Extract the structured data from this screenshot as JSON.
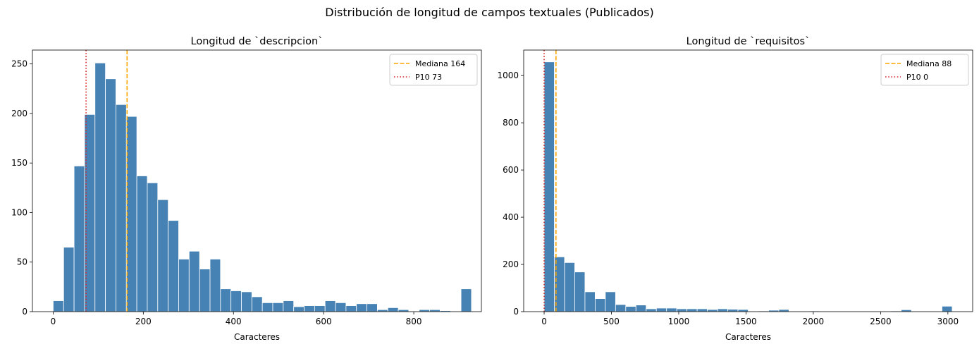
{
  "figure": {
    "suptitle": "Distribución de longitud de campos textuales (Publicados)"
  },
  "colors": {
    "bar": "#4682b4",
    "median": "#ffa500",
    "p10": "#d62728"
  },
  "chart_data": [
    {
      "type": "bar",
      "title": "Longitud de `descripcion`",
      "xlabel": "Caracteres",
      "ylabel": "",
      "xlim": [
        -46,
        950
      ],
      "ylim": [
        0,
        264
      ],
      "xticks": [
        0,
        200,
        400,
        600,
        800
      ],
      "yticks": [
        0,
        50,
        100,
        150,
        200,
        250
      ],
      "bin_width": 23.2,
      "bin_start": 0,
      "values": [
        11,
        65,
        147,
        199,
        251,
        235,
        209,
        197,
        137,
        130,
        113,
        92,
        53,
        61,
        43,
        53,
        23,
        21,
        20,
        15,
        9,
        9,
        11,
        5,
        6,
        6,
        11,
        9,
        6,
        8,
        8,
        2,
        4,
        2,
        0,
        2,
        2,
        1,
        0,
        23
      ],
      "median": 164,
      "p10": 73,
      "legend": {
        "position": "upper right",
        "entries": [
          "Mediana 164",
          "P10 73"
        ]
      }
    },
    {
      "type": "bar",
      "title": "Longitud de `requisitos`",
      "xlabel": "Caracteres",
      "ylabel": "",
      "xlim": [
        -152,
        3184
      ],
      "ylim": [
        0,
        1108
      ],
      "xticks": [
        0,
        500,
        1000,
        1500,
        2000,
        2500,
        3000
      ],
      "yticks": [
        0,
        200,
        400,
        600,
        800,
        1000
      ],
      "bin_width": 75.8,
      "bin_start": 0,
      "values": [
        1058,
        232,
        208,
        168,
        84,
        55,
        84,
        30,
        22,
        28,
        12,
        15,
        15,
        12,
        12,
        12,
        9,
        12,
        10,
        9,
        0,
        3,
        6,
        9,
        0,
        0,
        3,
        0,
        0,
        0,
        2,
        0,
        0,
        0,
        3,
        8,
        0,
        0,
        0,
        23
      ],
      "median": 88,
      "p10": 0,
      "legend": {
        "position": "upper right",
        "entries": [
          "Mediana 88",
          "P10 0"
        ]
      }
    }
  ]
}
